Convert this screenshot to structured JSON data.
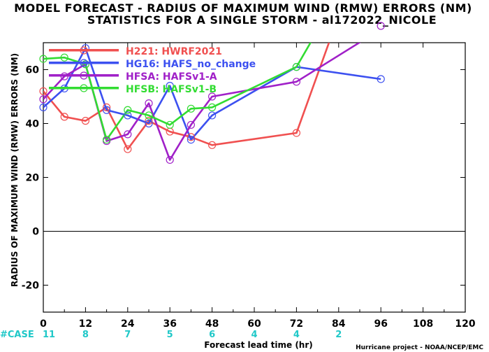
{
  "chart_data": {
    "type": "line",
    "title": "MODEL FORECAST - RADIUS OF MAXIMUM WIND (RMW) ERRORS (NM)",
    "subtitle": "STATISTICS FOR A SINGLE STORM - al172022_NICOLE",
    "xlabel": "Forecast lead time (hr)",
    "ylabel": "RADIUS OF MAXIMUM WIND (RMW) ERRORS (NM)",
    "xlim": [
      0,
      120
    ],
    "ylim": [
      -30,
      70
    ],
    "xticks": [
      0,
      12,
      24,
      36,
      48,
      60,
      72,
      84,
      96,
      108,
      120
    ],
    "yticks": [
      -20,
      0,
      20,
      40,
      60
    ],
    "legend_position": "top-left",
    "series": [
      {
        "name": "H221: HWRF2021",
        "color": "#f05050",
        "x": [
          0,
          6,
          12,
          18,
          24,
          30,
          36,
          42,
          48,
          72,
          84
        ],
        "y": [
          52,
          42.5,
          41,
          46,
          30.5,
          41,
          37,
          35,
          32,
          36.5,
          80
        ]
      },
      {
        "name": "HG16: HAFS_no_change",
        "color": "#3c50f0",
        "x": [
          0,
          6,
          12,
          18,
          24,
          30,
          36,
          42,
          48,
          72,
          96
        ],
        "y": [
          46,
          53,
          68,
          45,
          43,
          40,
          54,
          34,
          43,
          61,
          56.5
        ]
      },
      {
        "name": "HFSA: HAFSv1-A",
        "color": "#a020c8",
        "x": [
          0,
          6,
          12,
          18,
          24,
          30,
          36,
          42,
          48,
          72,
          96
        ],
        "y": [
          49,
          57.5,
          62,
          33.5,
          36,
          47.5,
          26.5,
          39.5,
          50,
          55.5,
          75
        ]
      },
      {
        "name": "HFSB: HAFSv1-B",
        "color": "#32dc32",
        "x": [
          0,
          6,
          12,
          18,
          24,
          30,
          36,
          42,
          48,
          72,
          84
        ],
        "y": [
          64,
          64.5,
          62,
          34,
          45,
          43,
          39.5,
          45.5,
          46,
          61,
          88
        ]
      }
    ],
    "off_chart_marker": {
      "series": "HFSA: HAFSv1-A",
      "x": 96
    },
    "cases": {
      "label": "#CASE",
      "x": [
        0,
        12,
        24,
        36,
        48,
        60,
        72,
        84
      ],
      "counts": [
        "11",
        "8",
        "7",
        "5",
        "6",
        "4",
        "4",
        "2"
      ],
      "color": "#20c8c8"
    },
    "credit": "Hurricane project - NOAA/NCEP/EMC"
  }
}
